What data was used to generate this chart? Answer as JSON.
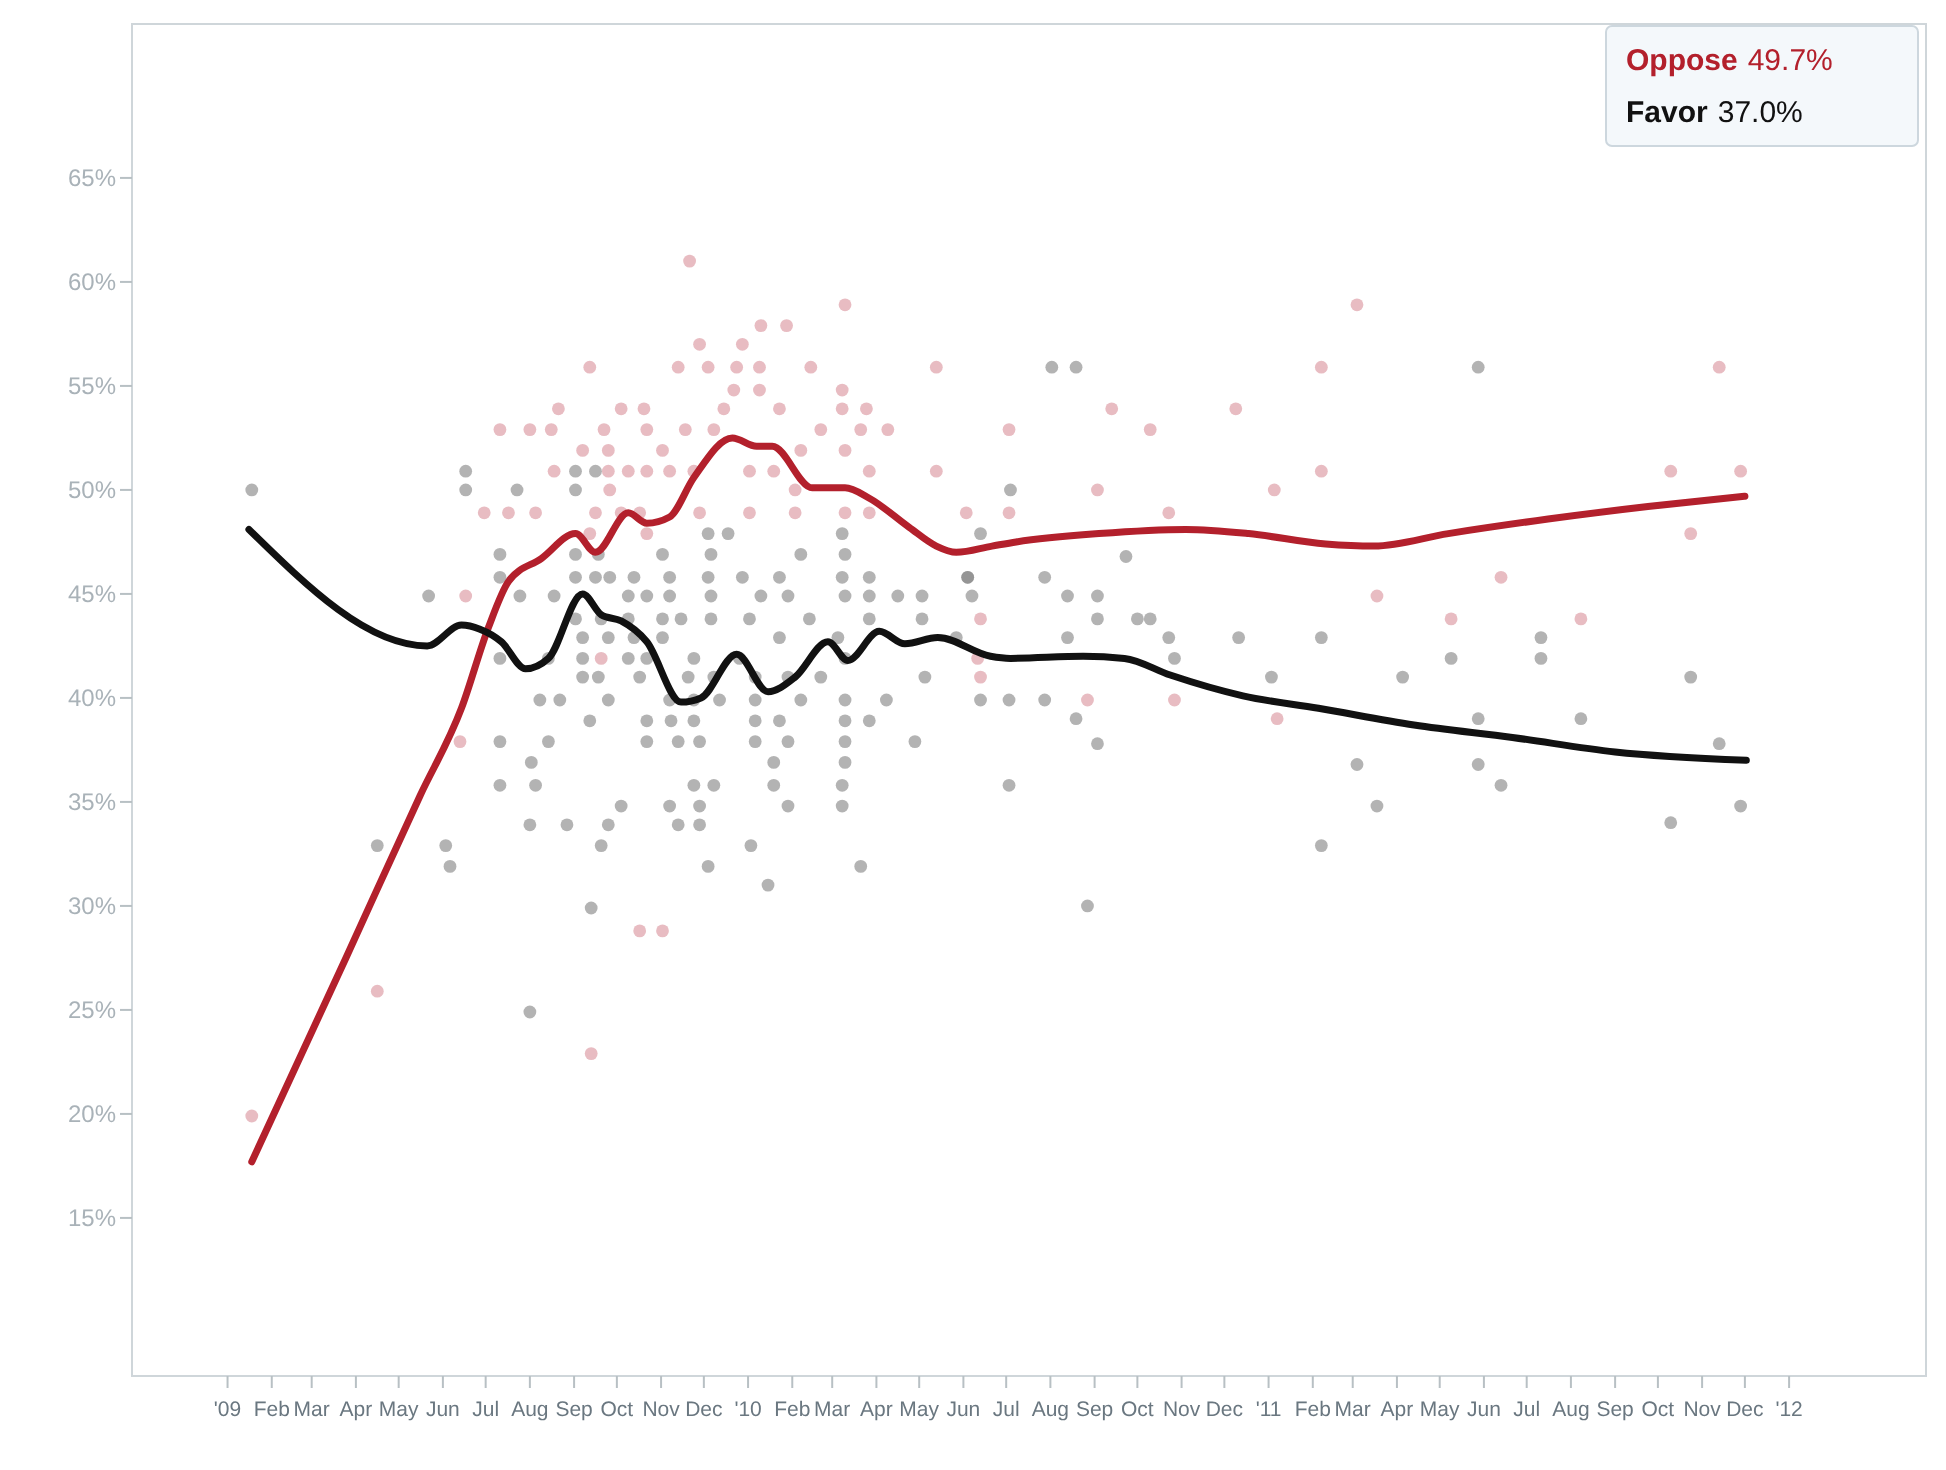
{
  "chart_data": {
    "type": "line",
    "xlim": [
      "2008-10-26",
      "2012-04-06"
    ],
    "ylim": [
      7.4,
      72.4
    ],
    "xticks": [
      {
        "value": "2009-01-01",
        "label": "'09"
      },
      {
        "value": "2009-02-01",
        "label": "Feb"
      },
      {
        "value": "2009-03-01",
        "label": "Mar"
      },
      {
        "value": "2009-04-01",
        "label": "Apr"
      },
      {
        "value": "2009-05-01",
        "label": "May"
      },
      {
        "value": "2009-06-01",
        "label": "Jun"
      },
      {
        "value": "2009-07-01",
        "label": "Jul"
      },
      {
        "value": "2009-08-01",
        "label": "Aug"
      },
      {
        "value": "2009-09-01",
        "label": "Sep"
      },
      {
        "value": "2009-10-01",
        "label": "Oct"
      },
      {
        "value": "2009-11-01",
        "label": "Nov"
      },
      {
        "value": "2009-12-01",
        "label": "Dec"
      },
      {
        "value": "2010-01-01",
        "label": "'10"
      },
      {
        "value": "2010-02-01",
        "label": "Feb"
      },
      {
        "value": "2010-03-01",
        "label": "Mar"
      },
      {
        "value": "2010-04-01",
        "label": "Apr"
      },
      {
        "value": "2010-05-01",
        "label": "May"
      },
      {
        "value": "2010-06-01",
        "label": "Jun"
      },
      {
        "value": "2010-07-01",
        "label": "Jul"
      },
      {
        "value": "2010-08-01",
        "label": "Aug"
      },
      {
        "value": "2010-09-01",
        "label": "Sep"
      },
      {
        "value": "2010-10-01",
        "label": "Oct"
      },
      {
        "value": "2010-11-01",
        "label": "Nov"
      },
      {
        "value": "2010-12-01",
        "label": "Dec"
      },
      {
        "value": "2011-01-01",
        "label": "'11"
      },
      {
        "value": "2011-02-01",
        "label": "Feb"
      },
      {
        "value": "2011-03-01",
        "label": "Mar"
      },
      {
        "value": "2011-04-01",
        "label": "Apr"
      },
      {
        "value": "2011-05-01",
        "label": "May"
      },
      {
        "value": "2011-06-01",
        "label": "Jun"
      },
      {
        "value": "2011-07-01",
        "label": "Jul"
      },
      {
        "value": "2011-08-01",
        "label": "Aug"
      },
      {
        "value": "2011-09-01",
        "label": "Sep"
      },
      {
        "value": "2011-10-01",
        "label": "Oct"
      },
      {
        "value": "2011-11-01",
        "label": "Nov"
      },
      {
        "value": "2011-12-01",
        "label": "Dec"
      },
      {
        "value": "2012-01-01",
        "label": "'12"
      }
    ],
    "yticks": [
      {
        "value": 15,
        "label": "15%"
      },
      {
        "value": 20,
        "label": "20%"
      },
      {
        "value": 25,
        "label": "25%"
      },
      {
        "value": 30,
        "label": "30%"
      },
      {
        "value": 35,
        "label": "35%"
      },
      {
        "value": 40,
        "label": "40%"
      },
      {
        "value": 45,
        "label": "45%"
      },
      {
        "value": 50,
        "label": "50%"
      },
      {
        "value": 55,
        "label": "55%"
      },
      {
        "value": 60,
        "label": "60%"
      },
      {
        "value": 65,
        "label": "65%"
      }
    ],
    "grid": false,
    "legend": "top right",
    "annotations": [
      "49.7%",
      "37.0%"
    ],
    "series": [
      {
        "type": "scatter",
        "color": "#d98f9a",
        "marker": "circle",
        "x": [
          "2009-11-21",
          "2010-03-10",
          "2010-01-10",
          "2010-01-28",
          "2009-11-28",
          "2009-12-28",
          "2009-09-12",
          "2009-11-13",
          "2009-12-04",
          "2009-12-24",
          "2010-01-09",
          "2010-02-14",
          "2010-05-13",
          "2009-12-22",
          "2010-01-09",
          "2010-03-08",
          "2009-08-21",
          "2009-10-04",
          "2009-10-20",
          "2009-12-15",
          "2010-01-23",
          "2010-03-08",
          "2010-03-25",
          "2009-07-11",
          "2009-08-01",
          "2009-08-16",
          "2009-09-22",
          "2009-10-22",
          "2009-11-18",
          "2009-12-08",
          "2010-02-21",
          "2010-03-21",
          "2010-04-09",
          "2009-09-07",
          "2009-09-25",
          "2009-11-02",
          "2010-02-07",
          "2010-03-10",
          "2009-08-18",
          "2009-09-25",
          "2009-10-09",
          "2009-10-22",
          "2009-11-07",
          "2009-11-24",
          "2010-01-02",
          "2010-01-19",
          "2010-03-27",
          "2010-05-13",
          "2009-09-26",
          "2010-02-03",
          "2009-06-30",
          "2009-07-17",
          "2009-08-05",
          "2009-09-16",
          "2009-10-04",
          "2009-10-17",
          "2009-11-28",
          "2010-01-02",
          "2010-02-03",
          "2010-03-10",
          "2010-03-27",
          "2010-06-03",
          "2009-09-12",
          "2009-10-22",
          "2009-06-17",
          "2009-06-13",
          "2009-10-17",
          "2009-11-02",
          "2009-09-13",
          "2009-01-18",
          "2009-04-16",
          "2009-09-20",
          "2010-06-11",
          "2011-03-04",
          "2011-02-07",
          "2011-11-13",
          "2010-09-13",
          "2010-12-09",
          "2010-10-10",
          "2010-07-03",
          "2011-02-07",
          "2011-10-10",
          "2011-11-28",
          "2010-09-03",
          "2011-01-05",
          "2010-07-03",
          "2010-10-23",
          "2011-10-24",
          "2011-06-13",
          "2011-03-18",
          "2010-06-13",
          "2011-05-09",
          "2011-08-08",
          "2010-06-13",
          "2010-08-27",
          "2010-10-27",
          "2011-01-07"
        ],
        "values": [
          61.0,
          58.9,
          57.9,
          57.9,
          57.0,
          57.0,
          55.9,
          55.9,
          55.9,
          55.9,
          55.9,
          55.9,
          55.9,
          54.8,
          54.8,
          54.8,
          53.9,
          53.9,
          53.9,
          53.9,
          53.9,
          53.9,
          53.9,
          52.9,
          52.9,
          52.9,
          52.9,
          52.9,
          52.9,
          52.9,
          52.9,
          52.9,
          52.9,
          51.9,
          51.9,
          51.9,
          51.9,
          51.9,
          50.9,
          50.9,
          50.9,
          50.9,
          50.9,
          50.9,
          50.9,
          50.9,
          50.9,
          50.9,
          50.0,
          50.0,
          48.9,
          48.9,
          48.9,
          48.9,
          48.9,
          48.9,
          48.9,
          48.9,
          48.9,
          48.9,
          48.9,
          48.9,
          47.9,
          47.9,
          44.9,
          37.9,
          28.8,
          28.8,
          22.9,
          19.9,
          25.9,
          41.9,
          41.9,
          58.9,
          55.9,
          55.9,
          53.9,
          53.9,
          52.9,
          52.9,
          50.9,
          50.9,
          50.9,
          50.0,
          50.0,
          48.9,
          48.9,
          47.9,
          45.8,
          44.9,
          43.8,
          43.8,
          43.8,
          41.0,
          39.9,
          39.9,
          39.0
        ]
      },
      {
        "type": "scatter",
        "color": "#808080",
        "marker": "circle",
        "x": [
          "2009-01-18",
          "2009-06-17",
          "2009-09-02",
          "2009-09-16",
          "2009-06-17",
          "2009-07-23",
          "2009-09-02",
          "2009-12-04",
          "2009-12-18",
          "2010-03-08",
          "2009-07-11",
          "2009-09-02",
          "2009-09-18",
          "2009-11-02",
          "2009-12-06",
          "2010-02-07",
          "2010-03-10",
          "2009-07-11",
          "2009-09-02",
          "2009-09-16",
          "2009-09-26",
          "2009-10-13",
          "2009-11-07",
          "2009-12-04",
          "2009-12-28",
          "2010-01-23",
          "2010-03-08",
          "2010-03-27",
          "2010-06-04",
          "2009-05-22",
          "2009-07-25",
          "2009-08-18",
          "2009-10-09",
          "2009-10-22",
          "2009-11-07",
          "2009-12-06",
          "2010-01-10",
          "2010-01-29",
          "2010-03-10",
          "2010-03-27",
          "2010-04-16",
          "2010-05-03",
          "2009-09-02",
          "2009-09-20",
          "2009-10-09",
          "2009-11-02",
          "2009-11-15",
          "2009-12-06",
          "2010-01-02",
          "2010-02-13",
          "2010-03-27",
          "2010-05-03",
          "2009-09-07",
          "2009-09-25",
          "2009-10-13",
          "2009-11-02",
          "2010-01-23",
          "2010-03-05",
          "2009-07-11",
          "2009-08-14",
          "2009-09-07",
          "2009-10-09",
          "2009-10-22",
          "2009-11-24",
          "2009-12-26",
          "2010-03-10",
          "2009-09-07",
          "2009-09-18",
          "2009-10-17",
          "2009-11-20",
          "2009-12-08",
          "2010-01-06",
          "2010-01-29",
          "2010-02-21",
          "2010-05-05",
          "2009-08-08",
          "2009-08-22",
          "2009-09-25",
          "2009-11-07",
          "2009-11-24",
          "2009-12-12",
          "2010-01-06",
          "2010-02-07",
          "2010-03-10",
          "2010-04-08",
          "2009-09-12",
          "2009-10-22",
          "2009-11-08",
          "2009-11-24",
          "2010-01-06",
          "2010-01-23",
          "2010-03-10",
          "2010-03-27",
          "2009-07-11",
          "2009-08-14",
          "2009-10-22",
          "2009-11-13",
          "2009-11-28",
          "2010-01-06",
          "2010-01-29",
          "2010-03-10",
          "2010-04-28",
          "2009-08-02",
          "2010-01-19",
          "2010-03-10",
          "2009-07-11",
          "2009-08-05",
          "2009-11-24",
          "2009-12-08",
          "2010-01-19",
          "2010-03-08",
          "2009-10-04",
          "2009-11-07",
          "2009-11-28",
          "2010-01-29",
          "2010-03-08",
          "2009-08-01",
          "2009-08-27",
          "2009-09-25",
          "2009-11-13",
          "2009-11-28",
          "2009-04-16",
          "2009-06-03",
          "2009-09-20",
          "2010-01-03",
          "2009-06-06",
          "2009-12-04",
          "2010-03-21",
          "2010-01-15",
          "2009-09-13",
          "2009-08-01",
          "2010-08-27",
          "2011-02-07",
          "2011-10-10",
          "2010-08-02",
          "2010-08-19",
          "2011-05-28",
          "2010-07-04",
          "2010-06-13",
          "2010-09-23",
          "2010-06-04",
          "2010-07-28",
          "2010-06-07",
          "2010-08-13",
          "2010-09-03",
          "2010-09-03",
          "2010-10-01",
          "2010-10-10",
          "2010-05-27",
          "2010-08-13",
          "2010-10-23",
          "2010-12-11",
          "2011-02-07",
          "2011-07-11",
          "2010-10-27",
          "2011-05-09",
          "2011-07-11",
          "2011-01-03",
          "2011-04-05",
          "2011-10-24",
          "2010-06-13",
          "2010-07-03",
          "2010-07-28",
          "2010-08-19",
          "2011-05-28",
          "2011-08-08",
          "2010-09-03",
          "2011-11-13",
          "2011-03-04",
          "2011-05-28",
          "2010-07-03",
          "2011-06-13",
          "2011-03-18",
          "2011-11-28"
        ],
        "values": [
          50.0,
          50.9,
          50.9,
          50.9,
          50.0,
          50.0,
          50.0,
          47.9,
          47.9,
          47.9,
          46.9,
          46.9,
          46.9,
          46.9,
          46.9,
          46.9,
          46.9,
          45.8,
          45.8,
          45.8,
          45.8,
          45.8,
          45.8,
          45.8,
          45.8,
          45.8,
          45.8,
          45.8,
          45.8,
          44.9,
          44.9,
          44.9,
          44.9,
          44.9,
          44.9,
          44.9,
          44.9,
          44.9,
          44.9,
          44.9,
          44.9,
          44.9,
          43.8,
          43.8,
          43.8,
          43.8,
          43.8,
          43.8,
          43.8,
          43.8,
          43.8,
          43.8,
          42.9,
          42.9,
          42.9,
          42.9,
          42.9,
          42.9,
          41.9,
          41.9,
          41.9,
          41.9,
          41.9,
          41.9,
          41.9,
          41.9,
          41.0,
          41.0,
          41.0,
          41.0,
          41.0,
          41.0,
          41.0,
          41.0,
          41.0,
          39.9,
          39.9,
          39.9,
          39.9,
          39.9,
          39.9,
          39.9,
          39.9,
          39.9,
          39.9,
          38.9,
          38.9,
          38.9,
          38.9,
          38.9,
          38.9,
          38.9,
          38.9,
          37.9,
          37.9,
          37.9,
          37.9,
          37.9,
          37.9,
          37.9,
          37.9,
          37.9,
          36.9,
          36.9,
          36.9,
          35.8,
          35.8,
          35.8,
          35.8,
          35.8,
          35.8,
          34.8,
          34.8,
          34.8,
          34.8,
          34.8,
          33.9,
          33.9,
          33.9,
          33.9,
          33.9,
          32.9,
          32.9,
          32.9,
          32.9,
          31.9,
          31.9,
          31.9,
          31.0,
          29.9,
          24.9,
          30.0,
          32.9,
          34.0,
          55.9,
          55.9,
          55.9,
          50.0,
          47.9,
          46.8,
          45.8,
          45.8,
          44.9,
          44.9,
          44.9,
          43.8,
          43.8,
          43.8,
          42.9,
          42.9,
          42.9,
          42.9,
          42.9,
          42.9,
          41.9,
          41.9,
          41.9,
          41.0,
          41.0,
          41.0,
          39.9,
          39.9,
          39.9,
          39.0,
          39.0,
          39.0,
          37.8,
          37.8,
          36.8,
          36.8,
          35.8,
          35.8,
          34.8,
          34.8
        ]
      },
      {
        "name": "Oppose",
        "color": "#b3202c",
        "x": [
          "2009-01-18",
          "2009-03-25",
          "2009-05-16",
          "2009-06-14",
          "2009-07-03",
          "2009-07-17",
          "2009-08-09",
          "2009-09-02",
          "2009-09-16",
          "2009-10-09",
          "2009-10-22",
          "2009-11-07",
          "2009-11-24",
          "2009-12-21",
          "2010-01-07",
          "2010-01-18",
          "2010-02-15",
          "2010-03-10",
          "2010-03-27",
          "2010-04-24",
          "2010-05-13",
          "2010-05-27",
          "2010-06-21",
          "2010-07-08",
          "2010-09-04",
          "2010-11-04",
          "2010-12-18",
          "2011-02-10",
          "2011-03-16",
          "2011-05-07",
          "2011-07-16",
          "2011-09-24",
          "2011-12-01"
        ],
        "values": [
          17.7,
          27.5,
          35.3,
          39.5,
          43.4,
          45.6,
          46.7,
          47.9,
          47.0,
          48.9,
          48.4,
          48.7,
          50.6,
          52.5,
          52.1,
          52.1,
          50.1,
          50.1,
          49.6,
          48.2,
          47.3,
          47.0,
          47.3,
          47.5,
          47.9,
          48.1,
          47.9,
          47.4,
          47.3,
          47.9,
          48.6,
          49.2,
          49.7
        ]
      },
      {
        "name": "Favor",
        "color": "#111111",
        "x": [
          "2009-01-16",
          "2009-05-21",
          "2009-06-14",
          "2009-06-27",
          "2009-07-12",
          "2009-07-29",
          "2009-08-14",
          "2009-09-07",
          "2009-09-20",
          "2009-10-04",
          "2009-10-22",
          "2009-11-15",
          "2009-11-29",
          "2009-12-24",
          "2010-01-15",
          "2010-02-03",
          "2010-02-26",
          "2010-03-12",
          "2010-04-03",
          "2010-04-21",
          "2010-05-14",
          "2010-06-20",
          "2010-07-04",
          "2010-08-24",
          "2010-09-22",
          "2010-10-24",
          "2010-12-14",
          "2011-02-05",
          "2011-04-13",
          "2011-06-21",
          "2011-09-01",
          "2011-12-02"
        ],
        "values": [
          48.1,
          42.5,
          43.5,
          43.3,
          42.7,
          41.4,
          41.9,
          45.0,
          44.0,
          43.7,
          42.7,
          39.8,
          40.0,
          42.1,
          40.3,
          41.0,
          42.7,
          41.8,
          43.2,
          42.6,
          42.9,
          42.0,
          41.9,
          42.0,
          41.9,
          41.1,
          40.1,
          39.5,
          38.7,
          38.1,
          37.4,
          37.0
        ]
      }
    ]
  }
}
